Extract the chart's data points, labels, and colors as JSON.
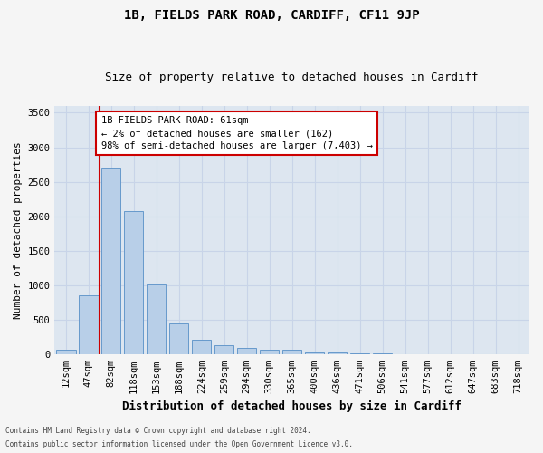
{
  "title_line1": "1B, FIELDS PARK ROAD, CARDIFF, CF11 9JP",
  "title_line2": "Size of property relative to detached houses in Cardiff",
  "xlabel": "Distribution of detached houses by size in Cardiff",
  "ylabel": "Number of detached properties",
  "categories": [
    "12sqm",
    "47sqm",
    "82sqm",
    "118sqm",
    "153sqm",
    "188sqm",
    "224sqm",
    "259sqm",
    "294sqm",
    "330sqm",
    "365sqm",
    "400sqm",
    "436sqm",
    "471sqm",
    "506sqm",
    "541sqm",
    "577sqm",
    "612sqm",
    "647sqm",
    "683sqm",
    "718sqm"
  ],
  "values": [
    75,
    850,
    2700,
    2075,
    1010,
    450,
    210,
    140,
    90,
    70,
    65,
    35,
    30,
    20,
    10,
    5,
    3,
    2,
    1,
    1,
    1
  ],
  "bar_color": "#b8cfe8",
  "bar_edge_color": "#6699cc",
  "vline_x": 1.5,
  "vline_color": "#cc0000",
  "annotation_title": "1B FIELDS PARK ROAD: 61sqm",
  "annotation_line1": "← 2% of detached houses are smaller (162)",
  "annotation_line2": "98% of semi-detached houses are larger (7,403) →",
  "annotation_box_facecolor": "#ffffff",
  "annotation_box_edgecolor": "#cc0000",
  "ylim": [
    0,
    3600
  ],
  "yticks": [
    0,
    500,
    1000,
    1500,
    2000,
    2500,
    3000,
    3500
  ],
  "grid_color": "#c8d4e8",
  "ax_facecolor": "#dde6f0",
  "fig_facecolor": "#f5f5f5",
  "title1_fontsize": 10,
  "title2_fontsize": 9,
  "ylabel_fontsize": 8,
  "xlabel_fontsize": 9,
  "tick_fontsize": 7.5,
  "footer_line1": "Contains HM Land Registry data © Crown copyright and database right 2024.",
  "footer_line2": "Contains public sector information licensed under the Open Government Licence v3.0."
}
